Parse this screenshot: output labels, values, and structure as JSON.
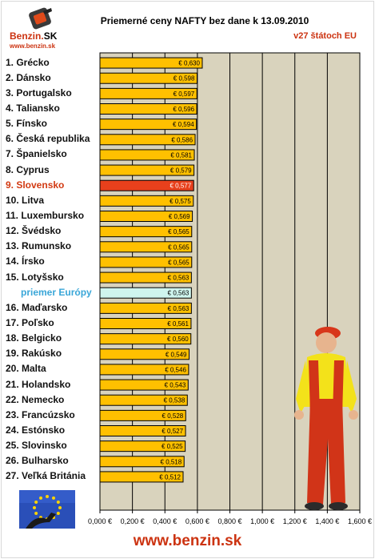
{
  "header": {
    "logo_text": "Benzin",
    "logo_suffix": "SK",
    "logo_url": "www.benzin.sk",
    "title": "Priemerné ceny NAFTY bez dane k 13.09.2010",
    "subtitle": "v27 štátoch EU"
  },
  "footer": {
    "url": "www.benzin.sk"
  },
  "colors": {
    "bar": "#ffc000",
    "bar_highlight": "#e8401c",
    "bar_average": "#cff5ee",
    "plot_bg": "#d9d3bd",
    "grid": "#000000",
    "highlight_text": "#d23a12",
    "average_text": "#39a6d8"
  },
  "chart_data": {
    "type": "bar",
    "orientation": "horizontal",
    "title": "Priemerné ceny NAFTY bez dane k 13.09.2010",
    "subtitle": "v27 štátoch EU",
    "xlim": [
      0,
      1.6
    ],
    "x_ticks": [
      "0,000 €",
      "0,200 €",
      "0,400 €",
      "0,600 €",
      "0,800 €",
      "1,000 €",
      "1,200 €",
      "1,400 €",
      "1,600 €"
    ],
    "grid": true,
    "categories": [
      "1. Grécko",
      "2. Dánsko",
      "3. Portugalsko",
      "4. Taliansko",
      "5. Fínsko",
      "6. Česká republika",
      "7. Španielsko",
      "8. Cyprus",
      "9. Slovensko",
      "10. Litva",
      "11. Luxembursko",
      "12. Švédsko",
      "13. Rumunsko",
      "14. Írsko",
      "15. Lotyšsko",
      "priemer Európy",
      "16. Maďarsko",
      "17. Poľsko",
      "18. Belgicko",
      "19. Rakúsko",
      "20. Malta",
      "21. Holandsko",
      "22. Nemecko",
      "23. Francúzsko",
      "24. Estónsko",
      "25. Slovinsko",
      "26. Bulharsko",
      "27. Veľká Británia"
    ],
    "values": [
      0.63,
      0.598,
      0.597,
      0.596,
      0.594,
      0.586,
      0.581,
      0.579,
      0.577,
      0.575,
      0.569,
      0.565,
      0.565,
      0.565,
      0.563,
      0.563,
      0.563,
      0.561,
      0.56,
      0.549,
      0.546,
      0.543,
      0.538,
      0.528,
      0.527,
      0.525,
      0.518,
      0.512
    ],
    "value_labels": [
      "€ 0,630",
      "€ 0,598",
      "€ 0,597",
      "€ 0,596",
      "€ 0,594",
      "€ 0,586",
      "€ 0,581",
      "€ 0,579",
      "€ 0,577",
      "€ 0,575",
      "€ 0,569",
      "€ 0,565",
      "€ 0,565",
      "€ 0,565",
      "€ 0,563",
      "€ 0,563",
      "€ 0,563",
      "€ 0,561",
      "€ 0,560",
      "€ 0,549",
      "€ 0,546",
      "€ 0,543",
      "€ 0,538",
      "€ 0,528",
      "€ 0,527",
      "€ 0,525",
      "€ 0,518",
      "€ 0,512"
    ],
    "highlight": "9. Slovensko",
    "average": "priemer Európy"
  }
}
